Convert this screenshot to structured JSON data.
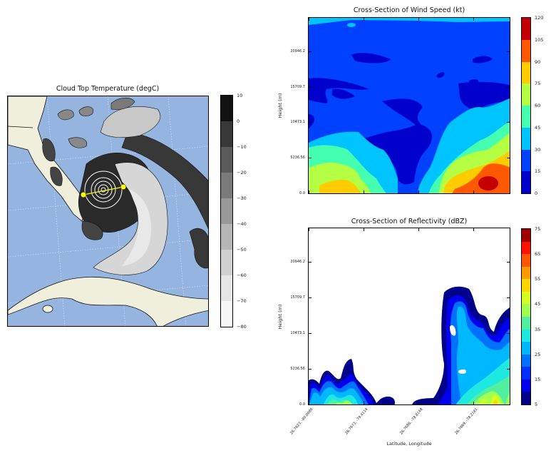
{
  "chart_data": [
    {
      "type": "map-contourf",
      "title": "Cloud Top Temperature (degC)",
      "colorbar": {
        "levels": [
          -80,
          -70,
          -60,
          -50,
          -40,
          -30,
          -20,
          -10,
          0,
          10
        ],
        "tick_labels": [
          "10",
          "0",
          "−10",
          "−20",
          "−30",
          "−40",
          "−50",
          "−60",
          "−70",
          "−80"
        ],
        "colors": [
          "#f7f7f7",
          "#e6e6e6",
          "#d0d0d0",
          "#b6b6b6",
          "#999999",
          "#7a7a7a",
          "#5a5a5a",
          "#383838",
          "#121212"
        ]
      },
      "ocean_color": "#95b4e0",
      "land_color": "#f0efdc",
      "cross_section_line_color": "#ffff00"
    },
    {
      "type": "contourf",
      "title": "Cross-Section of Wind Speed (kt)",
      "ylabel": "Height (m)",
      "yticks": [
        "0.0",
        "5236.56",
        "10473.1",
        "15709.7",
        "20946.2"
      ],
      "ytick_values": [
        0,
        5236.56,
        10473.1,
        15709.7,
        20946.2
      ],
      "colorbar": {
        "levels": [
          0,
          15,
          30,
          45,
          60,
          75,
          90,
          105,
          120
        ],
        "tick_labels": [
          "120",
          "105",
          "90",
          "75",
          "60",
          "45",
          "30",
          "15",
          "0"
        ],
        "colors": [
          "#0000cd",
          "#0040ff",
          "#00c4ff",
          "#44ffb0",
          "#b4ff44",
          "#ffcc00",
          "#ff5800",
          "#c40000"
        ]
      }
    },
    {
      "type": "contourf",
      "title": "Cross-Section of Reflectivity (dBZ)",
      "ylabel": "Height (m)",
      "xlabel": "Latitude, Longitude",
      "yticks": [
        "0.0",
        "5236.56",
        "10473.1",
        "15709.7",
        "20946.2"
      ],
      "ytick_values": [
        0,
        5236.56,
        10473.1,
        15709.7,
        20946.2
      ],
      "xticks": [
        "26.7623, -80.0080",
        "26.7673, -79.4114",
        "26.7688, -78.8148",
        "26.7669, -78.2181"
      ],
      "colorbar": {
        "levels": [
          5,
          10,
          15,
          20,
          25,
          30,
          35,
          40,
          45,
          50,
          55,
          60,
          65,
          70,
          75
        ],
        "tick_labels": [
          "75",
          "65",
          "55",
          "45",
          "35",
          "25",
          "15",
          "5"
        ],
        "colors": [
          "#00008b",
          "#0000ee",
          "#0030ff",
          "#0070ff",
          "#00b8ff",
          "#1ee8e0",
          "#50f0a0",
          "#a0ff50",
          "#d4ff20",
          "#ffd700",
          "#ff9900",
          "#ff5500",
          "#ff1100",
          "#a00000"
        ]
      }
    }
  ]
}
